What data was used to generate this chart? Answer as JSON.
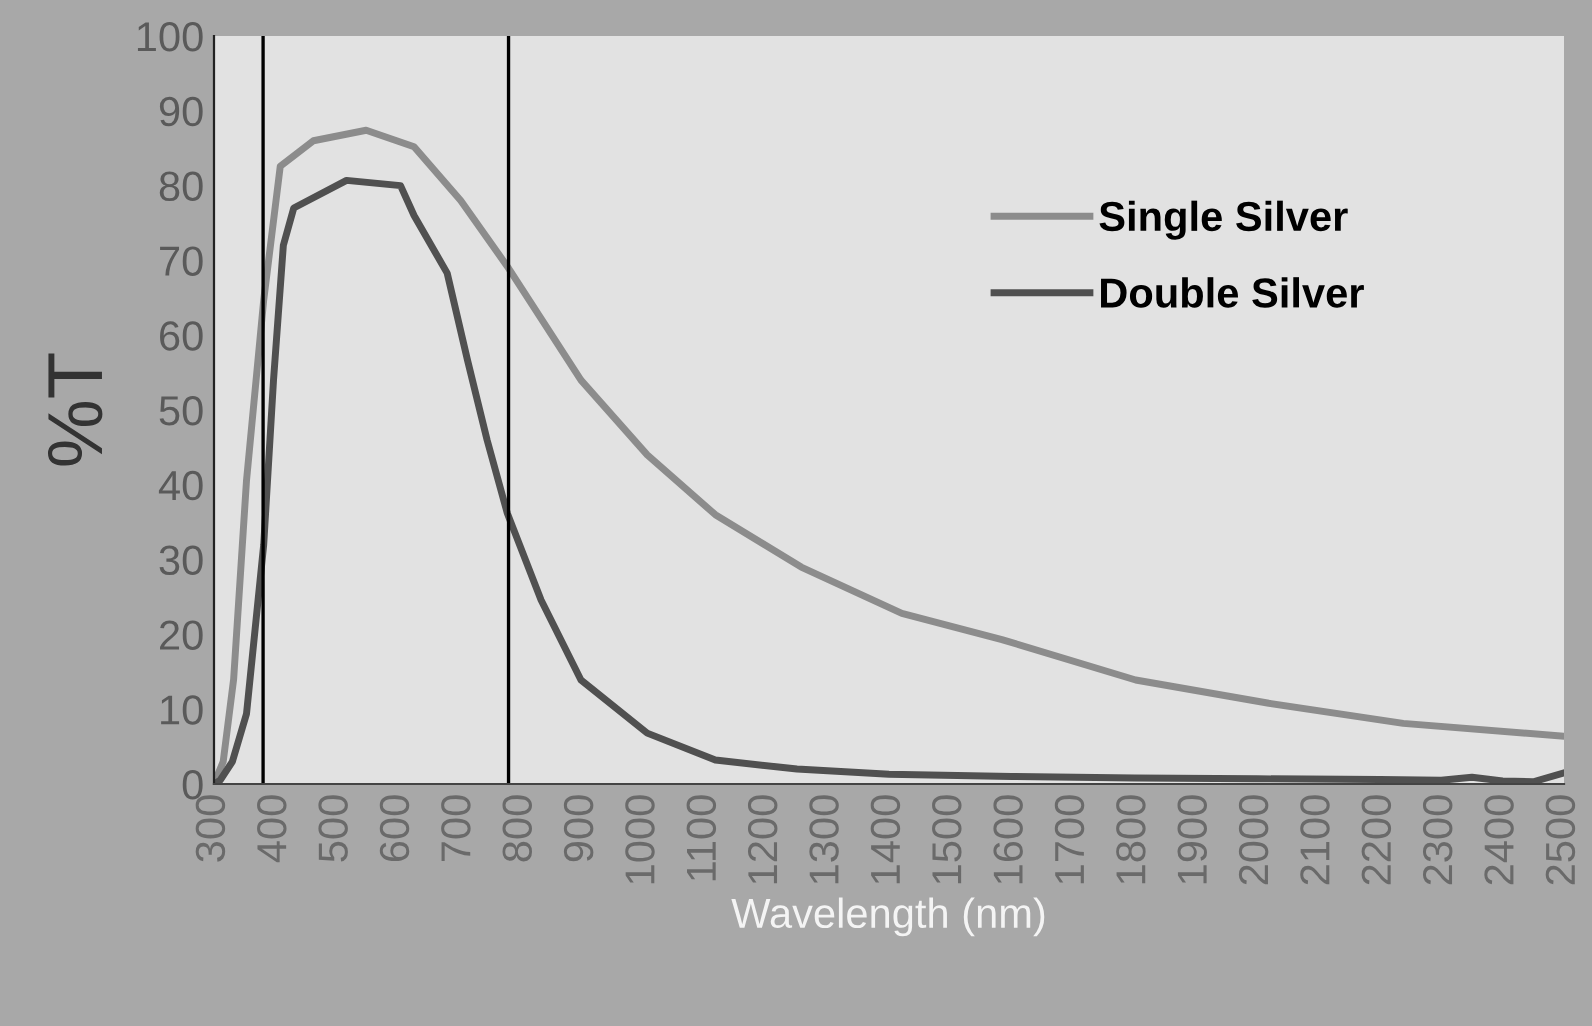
{
  "chart_data": {
    "type": "line",
    "xlabel": "Wavelength (nm)",
    "ylabel": "%T",
    "xlim": [
      300,
      2500
    ],
    "ylim": [
      0,
      100
    ],
    "xticks": [
      300,
      400,
      500,
      600,
      700,
      800,
      900,
      1000,
      1100,
      1200,
      1300,
      1400,
      1500,
      1600,
      1700,
      1800,
      1900,
      2000,
      2100,
      2200,
      2300,
      2400,
      2500
    ],
    "yticks": [
      0,
      10,
      20,
      30,
      40,
      50,
      60,
      70,
      80,
      90,
      100
    ],
    "legend": "top right",
    "grid": false,
    "ref_lines": [
      {
        "axis": "x",
        "value": 380,
        "color": "#000000"
      },
      {
        "axis": "x",
        "value": 780,
        "color": "#000000"
      }
    ],
    "series": [
      {
        "name": "Single Silver",
        "color": "#8c8c8c",
        "x": [
          300,
          315,
          332,
          353,
          381,
          408,
          462,
          548,
          626,
          702,
          778,
          898,
          1006,
          1117,
          1257,
          1421,
          1584,
          1802,
          2019,
          2238,
          2499
        ],
        "values": [
          0,
          3,
          14,
          40.6,
          64.7,
          82.6,
          86,
          87.4,
          85.2,
          78,
          69.2,
          54,
          44,
          36,
          29,
          22.8,
          19.3,
          13.9,
          10.8,
          8.1,
          6.4
        ]
      },
      {
        "name": "Double Silver",
        "color": "#505050",
        "x": [
          300,
          310,
          330,
          353,
          381,
          397,
          413,
          430,
          516,
          604,
          626,
          680,
          713,
          745,
          778,
          833,
          898,
          1006,
          1117,
          1250,
          1400,
          1600,
          1800,
          2000,
          2200,
          2300,
          2350,
          2400,
          2450,
          2500
        ],
        "values": [
          0,
          0.5,
          3,
          9.4,
          32,
          54,
          72,
          77,
          80.7,
          80,
          76,
          68.3,
          56.7,
          46,
          36.2,
          24.6,
          13.9,
          6.8,
          3.2,
          2,
          1.3,
          1,
          0.8,
          0.7,
          0.6,
          0.5,
          0.9,
          0.4,
          0.3,
          1.5
        ]
      }
    ]
  }
}
